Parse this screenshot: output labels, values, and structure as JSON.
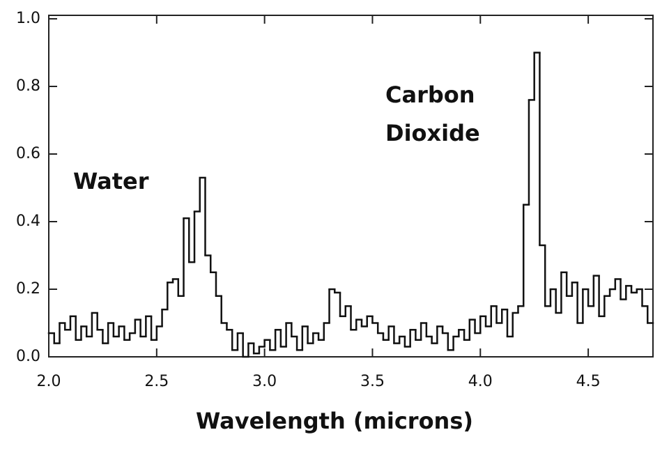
{
  "chart_data": {
    "type": "step",
    "xlabel": "Wavelength (microns)",
    "annotations": [
      "Water",
      "Carbon",
      "Dioxide"
    ],
    "color": "#111111",
    "xlim": [
      2.0,
      4.8
    ],
    "ylim": [
      0,
      1.0
    ],
    "xticks": [
      {
        "value": 2.0,
        "label": "2.0"
      },
      2.5,
      {
        "value": 3.0,
        "label": "3.0"
      },
      3.5,
      {
        "value": 4.0,
        "label": "4.0"
      },
      4.5
    ],
    "yticks": [
      {
        "value": 0,
        "label": "0.0"
      },
      0.2,
      0.4,
      0.6,
      0.8,
      {
        "value": 1.0,
        "label": "1.0"
      }
    ],
    "x": [
      2,
      2.025,
      2.05,
      2.075,
      2.1,
      2.125,
      2.15,
      2.175,
      2.2,
      2.225,
      2.25,
      2.275,
      2.3,
      2.325,
      2.35,
      2.375,
      2.4,
      2.425,
      2.45,
      2.475,
      2.5,
      2.525,
      2.55,
      2.575,
      2.6,
      2.625,
      2.65,
      2.675,
      2.7,
      2.725,
      2.75,
      2.775,
      2.8,
      2.825,
      2.85,
      2.875,
      2.9,
      2.925,
      2.95,
      2.975,
      3,
      3.025,
      3.05,
      3.075,
      3.1,
      3.125,
      3.15,
      3.175,
      3.2,
      3.225,
      3.25,
      3.275,
      3.3,
      3.325,
      3.35,
      3.375,
      3.4,
      3.425,
      3.45,
      3.475,
      3.5,
      3.525,
      3.55,
      3.575,
      3.6,
      3.625,
      3.65,
      3.675,
      3.7,
      3.725,
      3.75,
      3.775,
      3.8,
      3.825,
      3.85,
      3.875,
      3.9,
      3.925,
      3.95,
      3.975,
      4,
      4.025,
      4.05,
      4.075,
      4.1,
      4.125,
      4.15,
      4.175,
      4.2,
      4.225,
      4.25,
      4.275,
      4.3,
      4.325,
      4.35,
      4.375,
      4.4,
      4.425,
      4.45,
      4.475,
      4.5,
      4.525,
      4.55,
      4.575,
      4.6,
      4.625,
      4.65,
      4.675,
      4.7,
      4.725,
      4.75,
      4.775
    ],
    "values": [
      0.07,
      0.04,
      0.1,
      0.08,
      0.12,
      0.05,
      0.09,
      0.06,
      0.13,
      0.08,
      0.04,
      0.1,
      0.06,
      0.09,
      0.05,
      0.07,
      0.11,
      0.06,
      0.12,
      0.05,
      0.09,
      0.14,
      0.22,
      0.23,
      0.18,
      0.41,
      0.28,
      0.43,
      0.53,
      0.3,
      0.25,
      0.18,
      0.1,
      0.08,
      0.02,
      0.07,
      0.0,
      0.04,
      0.01,
      0.03,
      0.05,
      0.02,
      0.08,
      0.03,
      0.1,
      0.06,
      0.02,
      0.09,
      0.04,
      0.07,
      0.05,
      0.1,
      0.2,
      0.19,
      0.12,
      0.15,
      0.08,
      0.11,
      0.09,
      0.12,
      0.1,
      0.07,
      0.05,
      0.09,
      0.04,
      0.06,
      0.03,
      0.08,
      0.05,
      0.1,
      0.06,
      0.04,
      0.09,
      0.07,
      0.02,
      0.06,
      0.08,
      0.05,
      0.11,
      0.07,
      0.12,
      0.09,
      0.15,
      0.1,
      0.14,
      0.06,
      0.13,
      0.15,
      0.45,
      0.76,
      0.9,
      0.33,
      0.15,
      0.2,
      0.13,
      0.25,
      0.18,
      0.22,
      0.1,
      0.2,
      0.15,
      0.24,
      0.12,
      0.18,
      0.2,
      0.23,
      0.17,
      0.21,
      0.19,
      0.2,
      0.15,
      0.1
    ]
  }
}
